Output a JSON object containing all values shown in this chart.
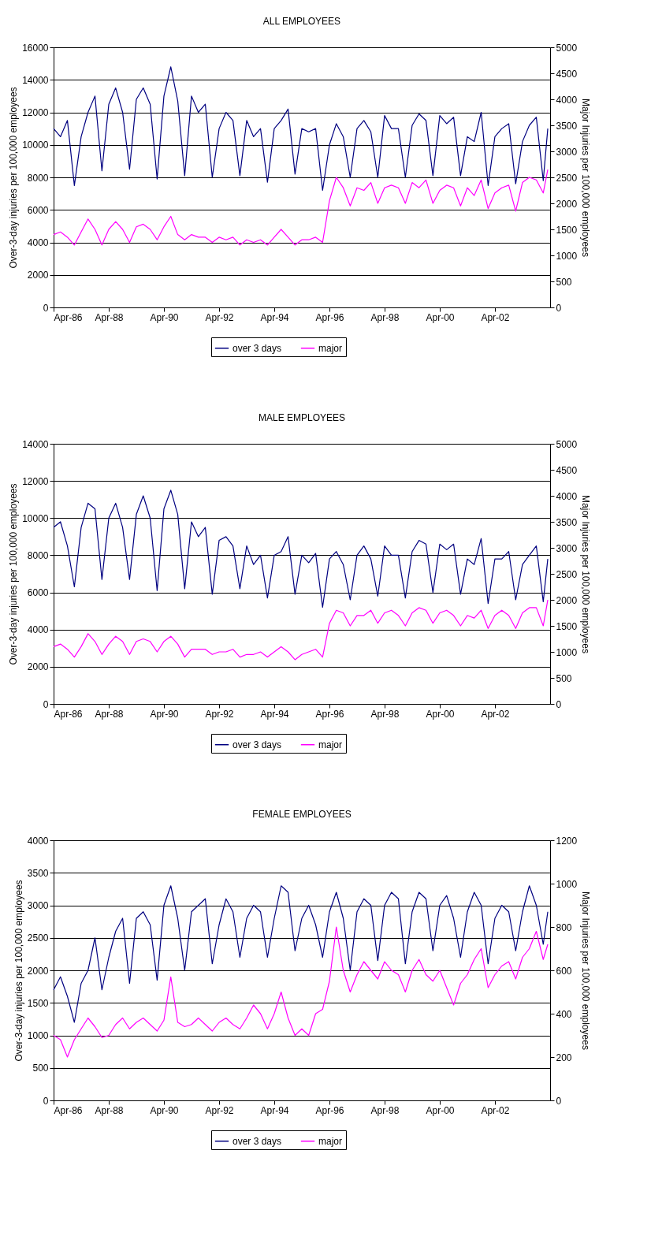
{
  "chart_data": [
    {
      "type": "line",
      "title": "ALL EMPLOYEES",
      "ylabel": "Over-3-day injuries per 100,000 employees",
      "y2label": "Major Injuries per 100,000 employees",
      "legend": "bottom",
      "grid": "y",
      "x": [
        "1986-04",
        "1986-07",
        "1986-10",
        "1987-01",
        "1987-04",
        "1987-07",
        "1987-10",
        "1988-01",
        "1988-04",
        "1988-07",
        "1988-10",
        "1989-01",
        "1989-04",
        "1989-07",
        "1989-10",
        "1990-01",
        "1990-04",
        "1990-07",
        "1990-10",
        "1991-01",
        "1991-04",
        "1991-07",
        "1991-10",
        "1992-01",
        "1992-04",
        "1992-07",
        "1992-10",
        "1993-01",
        "1993-04",
        "1993-07",
        "1993-10",
        "1994-01",
        "1994-04",
        "1994-07",
        "1994-10",
        "1995-01",
        "1995-04",
        "1995-07",
        "1995-10",
        "1996-01",
        "1996-04",
        "1996-07",
        "1996-10",
        "1997-01",
        "1997-04",
        "1997-07",
        "1997-10",
        "1998-01",
        "1998-04",
        "1998-07",
        "1998-10",
        "1999-01",
        "1999-04",
        "1999-07",
        "1999-10",
        "2000-01",
        "2000-04",
        "2000-07",
        "2000-10",
        "2001-01",
        "2001-04",
        "2001-07",
        "2001-10",
        "2002-01",
        "2002-04",
        "2002-07",
        "2002-10",
        "2003-01",
        "2003-04",
        "2003-07",
        "2003-10",
        "2004-01",
        "2004-03"
      ],
      "xlim": [
        "1986-04",
        "2004-04"
      ],
      "xticks": [
        {
          "value": "1986-04",
          "label": "Apr-86"
        },
        {
          "value": "1988-04",
          "label": "Apr-88"
        },
        {
          "value": "1990-04",
          "label": "Apr-90"
        },
        {
          "value": "1992-04",
          "label": "Apr-92"
        },
        {
          "value": "1994-04",
          "label": "Apr-94"
        },
        {
          "value": "1996-04",
          "label": "Apr-96"
        },
        {
          "value": "1998-04",
          "label": "Apr-98"
        },
        {
          "value": "2000-04",
          "label": "Apr-00"
        },
        {
          "value": "2002-04",
          "label": "Apr-02"
        }
      ],
      "ylim": [
        0,
        16000
      ],
      "yticks": [
        0,
        2000,
        4000,
        6000,
        8000,
        10000,
        12000,
        14000,
        16000
      ],
      "y2lim": [
        0,
        5000
      ],
      "y2ticks": [
        0,
        500,
        1000,
        1500,
        2000,
        2500,
        3000,
        3500,
        4000,
        4500,
        5000
      ],
      "series": [
        {
          "name": "over 3 days",
          "color": "#000080",
          "values": [
            11000,
            10500,
            11500,
            7500,
            10500,
            12000,
            13000,
            8400,
            12500,
            13500,
            12000,
            8500,
            12800,
            13500,
            12500,
            7900,
            13000,
            14800,
            12700,
            8100,
            13000,
            12000,
            12500,
            8000,
            11000,
            12000,
            11500,
            8100,
            11500,
            10500,
            11000,
            7700,
            11000,
            11500,
            12200,
            8200,
            11000,
            10800,
            11000,
            7200,
            10000,
            11300,
            10500,
            8000,
            11000,
            11500,
            10800,
            8000,
            11800,
            11000,
            11000,
            8000,
            11200,
            11900,
            11500,
            8100,
            11800,
            11300,
            11700,
            8100,
            10500,
            10200,
            12000,
            7500,
            10500,
            11000,
            11300,
            7600,
            10200,
            11200,
            11700,
            7800,
            11000
          ]
        },
        {
          "name": "major",
          "color": "#ff00ff",
          "axis": "y2",
          "values": [
            1400,
            1450,
            1350,
            1200,
            1450,
            1700,
            1500,
            1200,
            1500,
            1650,
            1500,
            1250,
            1550,
            1600,
            1500,
            1300,
            1550,
            1750,
            1400,
            1300,
            1400,
            1350,
            1350,
            1250,
            1350,
            1300,
            1350,
            1200,
            1300,
            1250,
            1300,
            1200,
            1350,
            1500,
            1350,
            1200,
            1300,
            1300,
            1350,
            1250,
            2050,
            2500,
            2300,
            1950,
            2300,
            2250,
            2400,
            2000,
            2300,
            2350,
            2300,
            2000,
            2400,
            2300,
            2450,
            2000,
            2250,
            2350,
            2300,
            1950,
            2300,
            2150,
            2450,
            1900,
            2200,
            2300,
            2350,
            1850,
            2400,
            2500,
            2450,
            2200,
            2650
          ]
        }
      ]
    },
    {
      "type": "line",
      "title": "MALE EMPLOYEES",
      "ylabel": "Over-3-day injuries per 100,000 employees",
      "y2label": "Major Injuries per 100,000 employees",
      "legend": "bottom",
      "grid": "y",
      "x": [
        "1986-04",
        "1986-07",
        "1986-10",
        "1987-01",
        "1987-04",
        "1987-07",
        "1987-10",
        "1988-01",
        "1988-04",
        "1988-07",
        "1988-10",
        "1989-01",
        "1989-04",
        "1989-07",
        "1989-10",
        "1990-01",
        "1990-04",
        "1990-07",
        "1990-10",
        "1991-01",
        "1991-04",
        "1991-07",
        "1991-10",
        "1992-01",
        "1992-04",
        "1992-07",
        "1992-10",
        "1993-01",
        "1993-04",
        "1993-07",
        "1993-10",
        "1994-01",
        "1994-04",
        "1994-07",
        "1994-10",
        "1995-01",
        "1995-04",
        "1995-07",
        "1995-10",
        "1996-01",
        "1996-04",
        "1996-07",
        "1996-10",
        "1997-01",
        "1997-04",
        "1997-07",
        "1997-10",
        "1998-01",
        "1998-04",
        "1998-07",
        "1998-10",
        "1999-01",
        "1999-04",
        "1999-07",
        "1999-10",
        "2000-01",
        "2000-04",
        "2000-07",
        "2000-10",
        "2001-01",
        "2001-04",
        "2001-07",
        "2001-10",
        "2002-01",
        "2002-04",
        "2002-07",
        "2002-10",
        "2003-01",
        "2003-04",
        "2003-07",
        "2003-10",
        "2004-01",
        "2004-03"
      ],
      "xlim": [
        "1986-04",
        "2004-04"
      ],
      "xticks": [
        {
          "value": "1986-04",
          "label": "Apr-86"
        },
        {
          "value": "1988-04",
          "label": "Apr-88"
        },
        {
          "value": "1990-04",
          "label": "Apr-90"
        },
        {
          "value": "1992-04",
          "label": "Apr-92"
        },
        {
          "value": "1994-04",
          "label": "Apr-94"
        },
        {
          "value": "1996-04",
          "label": "Apr-96"
        },
        {
          "value": "1998-04",
          "label": "Apr-98"
        },
        {
          "value": "2000-04",
          "label": "Apr-00"
        },
        {
          "value": "2002-04",
          "label": "Apr-02"
        }
      ],
      "ylim": [
        0,
        14000
      ],
      "yticks": [
        0,
        2000,
        4000,
        6000,
        8000,
        10000,
        12000,
        14000
      ],
      "y2lim": [
        0,
        5000
      ],
      "y2ticks": [
        0,
        500,
        1000,
        1500,
        2000,
        2500,
        3000,
        3500,
        4000,
        4500,
        5000
      ],
      "series": [
        {
          "name": "over 3 days",
          "color": "#000080",
          "values": [
            9500,
            9800,
            8500,
            6300,
            9500,
            10800,
            10500,
            6700,
            10000,
            10800,
            9500,
            6700,
            10200,
            11200,
            10000,
            6100,
            10500,
            11500,
            10200,
            6200,
            9800,
            9000,
            9500,
            5900,
            8800,
            9000,
            8500,
            6200,
            8500,
            7500,
            8000,
            5700,
            8000,
            8200,
            9000,
            5900,
            8000,
            7600,
            8100,
            5200,
            7800,
            8200,
            7500,
            5600,
            8000,
            8500,
            7800,
            5800,
            8500,
            8000,
            8000,
            5700,
            8200,
            8800,
            8600,
            6000,
            8600,
            8300,
            8600,
            5900,
            7800,
            7500,
            8900,
            5400,
            7800,
            7800,
            8200,
            5600,
            7500,
            8000,
            8500,
            5500,
            7800
          ]
        },
        {
          "name": "major",
          "color": "#ff00ff",
          "axis": "y2",
          "values": [
            1100,
            1150,
            1050,
            900,
            1100,
            1350,
            1200,
            950,
            1150,
            1300,
            1200,
            950,
            1200,
            1250,
            1200,
            1000,
            1200,
            1300,
            1150,
            900,
            1050,
            1050,
            1050,
            950,
            1000,
            1000,
            1050,
            900,
            950,
            950,
            1000,
            900,
            1000,
            1100,
            1000,
            850,
            950,
            1000,
            1050,
            900,
            1550,
            1800,
            1750,
            1500,
            1700,
            1700,
            1800,
            1550,
            1750,
            1800,
            1700,
            1500,
            1750,
            1850,
            1800,
            1550,
            1750,
            1800,
            1700,
            1500,
            1700,
            1650,
            1800,
            1450,
            1700,
            1800,
            1700,
            1450,
            1750,
            1850,
            1850,
            1500,
            2000
          ]
        }
      ]
    },
    {
      "type": "line",
      "title": "FEMALE EMPLOYEES",
      "ylabel": "Over-3-day injuries per 100,000 employees",
      "y2label": "Major Injuries per 100,000 employees",
      "legend": "bottom",
      "grid": "y",
      "x": [
        "1986-04",
        "1986-07",
        "1986-10",
        "1987-01",
        "1987-04",
        "1987-07",
        "1987-10",
        "1988-01",
        "1988-04",
        "1988-07",
        "1988-10",
        "1989-01",
        "1989-04",
        "1989-07",
        "1989-10",
        "1990-01",
        "1990-04",
        "1990-07",
        "1990-10",
        "1991-01",
        "1991-04",
        "1991-07",
        "1991-10",
        "1992-01",
        "1992-04",
        "1992-07",
        "1992-10",
        "1993-01",
        "1993-04",
        "1993-07",
        "1993-10",
        "1994-01",
        "1994-04",
        "1994-07",
        "1994-10",
        "1995-01",
        "1995-04",
        "1995-07",
        "1995-10",
        "1996-01",
        "1996-04",
        "1996-07",
        "1996-10",
        "1997-01",
        "1997-04",
        "1997-07",
        "1997-10",
        "1998-01",
        "1998-04",
        "1998-07",
        "1998-10",
        "1999-01",
        "1999-04",
        "1999-07",
        "1999-10",
        "2000-01",
        "2000-04",
        "2000-07",
        "2000-10",
        "2001-01",
        "2001-04",
        "2001-07",
        "2001-10",
        "2002-01",
        "2002-04",
        "2002-07",
        "2002-10",
        "2003-01",
        "2003-04",
        "2003-07",
        "2003-10",
        "2004-01",
        "2004-03"
      ],
      "xlim": [
        "1986-04",
        "2004-04"
      ],
      "xticks": [
        {
          "value": "1986-04",
          "label": "Apr-86"
        },
        {
          "value": "1988-04",
          "label": "Apr-88"
        },
        {
          "value": "1990-04",
          "label": "Apr-90"
        },
        {
          "value": "1992-04",
          "label": "Apr-92"
        },
        {
          "value": "1994-04",
          "label": "Apr-94"
        },
        {
          "value": "1996-04",
          "label": "Apr-96"
        },
        {
          "value": "1998-04",
          "label": "Apr-98"
        },
        {
          "value": "2000-04",
          "label": "Apr-00"
        },
        {
          "value": "2002-04",
          "label": "Apr-02"
        }
      ],
      "ylim": [
        0,
        4000
      ],
      "yticks": [
        0,
        500,
        1000,
        1500,
        2000,
        2500,
        3000,
        3500,
        4000
      ],
      "y2lim": [
        0,
        1200
      ],
      "y2ticks": [
        0,
        200,
        400,
        600,
        800,
        1000,
        1200
      ],
      "series": [
        {
          "name": "over 3 days",
          "color": "#000080",
          "values": [
            1700,
            1900,
            1600,
            1200,
            1800,
            2000,
            2500,
            1700,
            2200,
            2600,
            2800,
            1800,
            2800,
            2900,
            2700,
            1850,
            3000,
            3300,
            2800,
            2000,
            2900,
            3000,
            3100,
            2100,
            2700,
            3100,
            2900,
            2200,
            2800,
            3000,
            2900,
            2200,
            2800,
            3300,
            3200,
            2300,
            2800,
            3000,
            2700,
            2200,
            2900,
            3200,
            2800,
            2000,
            2900,
            3100,
            3000,
            2150,
            3000,
            3200,
            3100,
            2100,
            2900,
            3200,
            3100,
            2300,
            3000,
            3150,
            2800,
            2200,
            2900,
            3200,
            3000,
            2100,
            2800,
            3000,
            2900,
            2300,
            2900,
            3300,
            3000,
            2400,
            2900
          ]
        },
        {
          "name": "major",
          "color": "#ff00ff",
          "axis": "y2",
          "values": [
            300,
            280,
            200,
            280,
            330,
            380,
            340,
            290,
            300,
            350,
            380,
            330,
            360,
            380,
            350,
            320,
            370,
            570,
            360,
            340,
            350,
            380,
            350,
            320,
            360,
            380,
            350,
            330,
            380,
            440,
            400,
            330,
            400,
            500,
            380,
            300,
            330,
            300,
            400,
            420,
            550,
            800,
            600,
            500,
            580,
            640,
            600,
            560,
            640,
            600,
            580,
            500,
            600,
            650,
            580,
            550,
            600,
            520,
            440,
            540,
            580,
            650,
            700,
            520,
            580,
            620,
            640,
            560,
            660,
            700,
            780,
            650,
            720
          ]
        }
      ]
    }
  ]
}
